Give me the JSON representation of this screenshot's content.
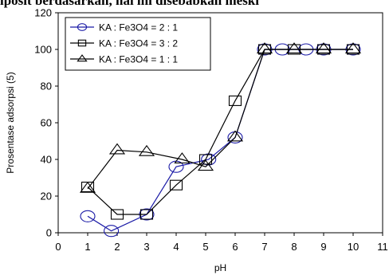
{
  "top_text": "iposit berdasarkan, hal ini disebabkan meski",
  "chart_data": {
    "type": "line",
    "title": "",
    "xlabel": "pH",
    "ylabel": "Prosentase adsorpsi (5)",
    "xlim": [
      0,
      11
    ],
    "ylim": [
      0,
      120
    ],
    "xticks": [
      0,
      1,
      2,
      3,
      4,
      5,
      6,
      7,
      8,
      9,
      10,
      11
    ],
    "yticks": [
      0,
      20,
      40,
      60,
      80,
      100,
      120
    ],
    "grid": false,
    "legend_position": "top-left",
    "series": [
      {
        "name": "KA : Fe3O4 = 2 : 1",
        "marker": "circle",
        "line_color": "#1a1aa6",
        "marker_color": "#1a1aa6",
        "x": [
          1,
          1.8,
          3,
          4,
          5.1,
          6,
          7,
          7.6,
          8.4,
          9,
          10
        ],
        "y": [
          9,
          1,
          10,
          36,
          40,
          52,
          100,
          100,
          100,
          100,
          100
        ]
      },
      {
        "name": "KA : Fe3O4 = 3 : 2",
        "marker": "square",
        "line_color": "#000000",
        "marker_color": "#000000",
        "x": [
          1,
          2,
          3,
          4,
          5,
          6,
          7,
          8,
          9,
          10
        ],
        "y": [
          25,
          10,
          10,
          26,
          40,
          72,
          100,
          100,
          100,
          100
        ]
      },
      {
        "name": "KA : Fe3O4 = 1 : 1",
        "marker": "triangle",
        "line_color": "#000000",
        "marker_color": "#000000",
        "x": [
          1,
          2,
          3,
          4.2,
          5,
          6,
          7,
          8,
          9,
          10
        ],
        "y": [
          24,
          45,
          44,
          40,
          36,
          52,
          100,
          100,
          100,
          100
        ]
      }
    ]
  }
}
